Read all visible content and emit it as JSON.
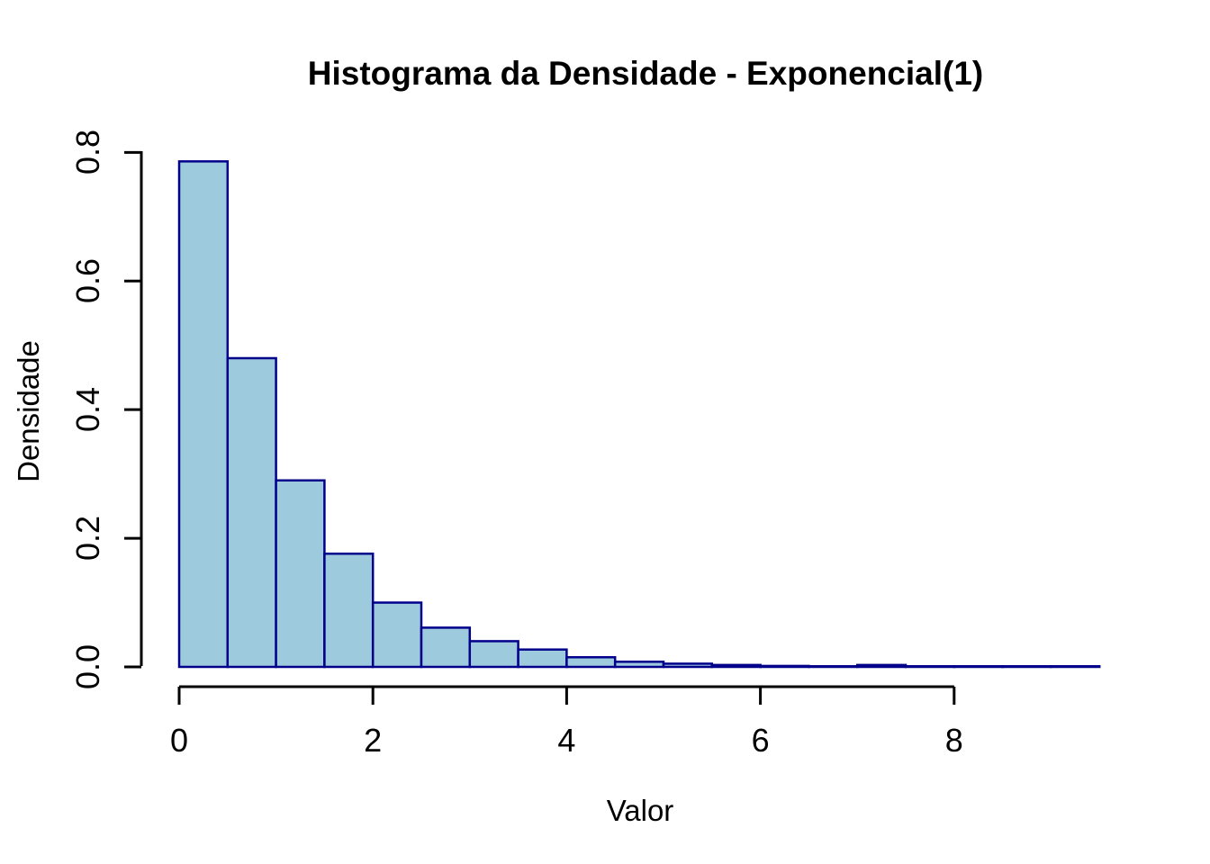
{
  "title": "Histograma da Densidade - Exponencial(1)",
  "chart_data": {
    "type": "bar",
    "subtype": "histogram",
    "title": "Histograma da Densidade - Exponencial(1)",
    "xlabel": "Valor",
    "ylabel": "Densidade",
    "bin_start": 0,
    "bin_width": 0.5,
    "densities": [
      0.786,
      0.48,
      0.29,
      0.176,
      0.1,
      0.061,
      0.04,
      0.027,
      0.015,
      0.008,
      0.005,
      0.003,
      0.0015,
      0.001,
      0.003,
      0.001,
      0.001,
      0.001,
      0.001
    ],
    "xlim": [
      0,
      9.5
    ],
    "ylim": [
      0,
      0.8
    ],
    "x_ticks": [
      "0",
      "2",
      "4",
      "6",
      "8"
    ],
    "x_tick_values": [
      0,
      2,
      4,
      6,
      8
    ],
    "y_ticks": [
      "0.0",
      "0.2",
      "0.4",
      "0.6",
      "0.8"
    ],
    "y_tick_values": [
      0.0,
      0.2,
      0.4,
      0.6,
      0.8
    ],
    "grid": "off",
    "legend": "none",
    "colors": {
      "bar_fill": "#9DCBDD",
      "bar_border": "#00008B",
      "axis": "#000000",
      "text": "#000000",
      "background": "#ffffff"
    }
  }
}
